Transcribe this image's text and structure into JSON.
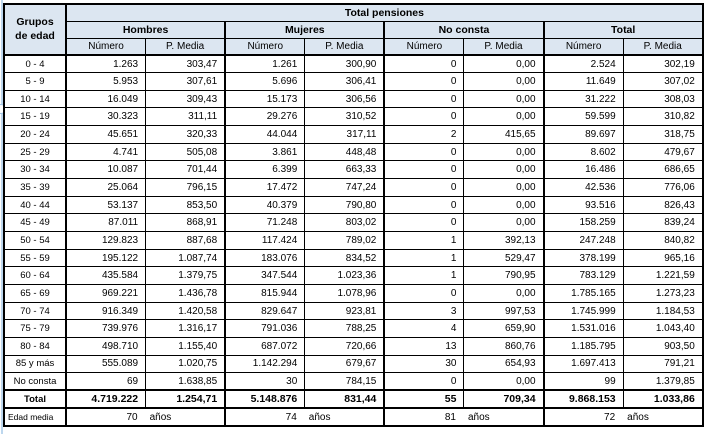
{
  "colors": {
    "header_bg": "#DCE6F1",
    "border": "#000000",
    "edge_accent": "#BDD7EE"
  },
  "chart_data": {
    "type": "table",
    "title": "Total pensiones",
    "corner_header": "Grupos de edad",
    "column_groups": [
      "Hombres",
      "Mujeres",
      "No consta",
      "Total"
    ],
    "subcolumns": [
      "Número",
      "P. Media"
    ],
    "rows": [
      {
        "label": "0 - 4",
        "values": [
          "1.263",
          "303,47",
          "1.261",
          "300,90",
          "0",
          "0,00",
          "2.524",
          "302,19"
        ]
      },
      {
        "label": "5 - 9",
        "values": [
          "5.953",
          "307,61",
          "5.696",
          "306,41",
          "0",
          "0,00",
          "11.649",
          "307,02"
        ]
      },
      {
        "label": "10 - 14",
        "values": [
          "16.049",
          "309,43",
          "15.173",
          "306,56",
          "0",
          "0,00",
          "31.222",
          "308,03"
        ]
      },
      {
        "label": "15 - 19",
        "values": [
          "30.323",
          "311,11",
          "29.276",
          "310,52",
          "0",
          "0,00",
          "59.599",
          "310,82"
        ]
      },
      {
        "label": "20 - 24",
        "values": [
          "45.651",
          "320,33",
          "44.044",
          "317,11",
          "2",
          "415,65",
          "89.697",
          "318,75"
        ]
      },
      {
        "label": "25 - 29",
        "values": [
          "4.741",
          "505,08",
          "3.861",
          "448,48",
          "0",
          "0,00",
          "8.602",
          "479,67"
        ]
      },
      {
        "label": "30 - 34",
        "values": [
          "10.087",
          "701,44",
          "6.399",
          "663,33",
          "0",
          "0,00",
          "16.486",
          "686,65"
        ]
      },
      {
        "label": "35 - 39",
        "values": [
          "25.064",
          "796,15",
          "17.472",
          "747,24",
          "0",
          "0,00",
          "42.536",
          "776,06"
        ]
      },
      {
        "label": "40 - 44",
        "values": [
          "53.137",
          "853,50",
          "40.379",
          "790,80",
          "0",
          "0,00",
          "93.516",
          "826,43"
        ]
      },
      {
        "label": "45 - 49",
        "values": [
          "87.011",
          "868,91",
          "71.248",
          "803,02",
          "0",
          "0,00",
          "158.259",
          "839,24"
        ]
      },
      {
        "label": "50 - 54",
        "values": [
          "129.823",
          "887,68",
          "117.424",
          "789,02",
          "1",
          "392,13",
          "247.248",
          "840,82"
        ]
      },
      {
        "label": "55 - 59",
        "values": [
          "195.122",
          "1.087,74",
          "183.076",
          "834,52",
          "1",
          "529,47",
          "378.199",
          "965,16"
        ]
      },
      {
        "label": "60 - 64",
        "values": [
          "435.584",
          "1.379,75",
          "347.544",
          "1.023,36",
          "1",
          "790,95",
          "783.129",
          "1.221,59"
        ]
      },
      {
        "label": "65 - 69",
        "values": [
          "969.221",
          "1.436,78",
          "815.944",
          "1.078,96",
          "0",
          "0,00",
          "1.785.165",
          "1.273,23"
        ]
      },
      {
        "label": "70 - 74",
        "values": [
          "916.349",
          "1.420,58",
          "829.647",
          "923,81",
          "3",
          "997,53",
          "1.745.999",
          "1.184,53"
        ]
      },
      {
        "label": "75 - 79",
        "values": [
          "739.976",
          "1.316,17",
          "791.036",
          "788,25",
          "4",
          "659,90",
          "1.531.016",
          "1.043,40"
        ]
      },
      {
        "label": "80 - 84",
        "values": [
          "498.710",
          "1.155,40",
          "687.072",
          "720,66",
          "13",
          "860,76",
          "1.185.795",
          "903,50"
        ]
      },
      {
        "label": "85 y más",
        "values": [
          "555.089",
          "1.020,75",
          "1.142.294",
          "679,67",
          "30",
          "654,93",
          "1.697.413",
          "791,21"
        ]
      },
      {
        "label": "No consta",
        "values": [
          "69",
          "1.638,85",
          "30",
          "784,15",
          "0",
          "0,00",
          "99",
          "1.379,85"
        ]
      }
    ],
    "total_row": {
      "label": "Total",
      "values": [
        "4.719.222",
        "1.254,71",
        "5.148.876",
        "831,44",
        "55",
        "709,34",
        "9.868.153",
        "1.033,86"
      ]
    },
    "age_mean_row": {
      "label": "Edad media",
      "unit": "años",
      "values": [
        "70",
        "74",
        "81",
        "72"
      ]
    }
  }
}
